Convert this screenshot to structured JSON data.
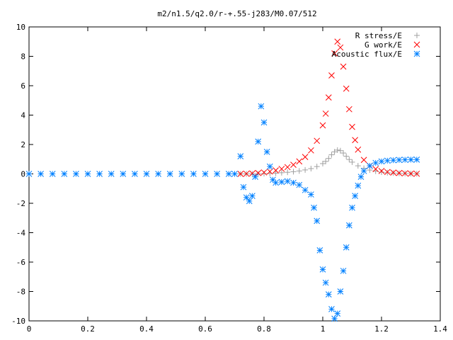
{
  "chart_data": {
    "type": "scatter",
    "title": "m2/n1.5/q2.0/r-+.55-j283/M0.07/512",
    "xlabel": "",
    "ylabel": "",
    "xlim": [
      0,
      1.4
    ],
    "ylim": [
      -10,
      10
    ],
    "xticks": [
      "0",
      "0.2",
      "0.4",
      "0.6",
      "0.8",
      "1",
      "1.2",
      "1.4"
    ],
    "yticks": [
      "-10",
      "-8",
      "-6",
      "-4",
      "-2",
      "0",
      "2",
      "4",
      "6",
      "8",
      "10"
    ],
    "grid": false,
    "legend_position": "top-right",
    "series": [
      {
        "name": "R stress/E",
        "marker": "plus",
        "color": "#a0a0a0",
        "points": [
          [
            0.72,
            0
          ],
          [
            0.74,
            0
          ],
          [
            0.76,
            0
          ],
          [
            0.78,
            0.01
          ],
          [
            0.8,
            0.02
          ],
          [
            0.82,
            0.03
          ],
          [
            0.84,
            0.05
          ],
          [
            0.86,
            0.08
          ],
          [
            0.88,
            0.11
          ],
          [
            0.9,
            0.15
          ],
          [
            0.92,
            0.2
          ],
          [
            0.94,
            0.27
          ],
          [
            0.96,
            0.36
          ],
          [
            0.98,
            0.5
          ],
          [
            1.0,
            0.7
          ],
          [
            1.01,
            0.85
          ],
          [
            1.02,
            1.05
          ],
          [
            1.03,
            1.3
          ],
          [
            1.04,
            1.5
          ],
          [
            1.05,
            1.62
          ],
          [
            1.06,
            1.58
          ],
          [
            1.07,
            1.42
          ],
          [
            1.08,
            1.2
          ],
          [
            1.09,
            0.98
          ],
          [
            1.1,
            0.8
          ],
          [
            1.12,
            0.55
          ],
          [
            1.14,
            0.38
          ],
          [
            1.16,
            0.26
          ],
          [
            1.18,
            0.18
          ],
          [
            1.2,
            0.12
          ],
          [
            1.22,
            0.08
          ],
          [
            1.24,
            0.06
          ],
          [
            1.26,
            0.04
          ],
          [
            1.28,
            0.03
          ],
          [
            1.3,
            0.02
          ],
          [
            1.32,
            0.01
          ]
        ]
      },
      {
        "name": "G work/E",
        "marker": "cross",
        "color": "#ff0000",
        "points": [
          [
            0.72,
            0
          ],
          [
            0.74,
            0.01
          ],
          [
            0.76,
            0.03
          ],
          [
            0.78,
            0.06
          ],
          [
            0.8,
            0.1
          ],
          [
            0.82,
            0.16
          ],
          [
            0.84,
            0.24
          ],
          [
            0.86,
            0.34
          ],
          [
            0.88,
            0.46
          ],
          [
            0.9,
            0.62
          ],
          [
            0.92,
            0.85
          ],
          [
            0.94,
            1.15
          ],
          [
            0.96,
            1.6
          ],
          [
            0.98,
            2.25
          ],
          [
            1.0,
            3.3
          ],
          [
            1.01,
            4.1
          ],
          [
            1.02,
            5.2
          ],
          [
            1.03,
            6.7
          ],
          [
            1.04,
            8.2
          ],
          [
            1.05,
            9.0
          ],
          [
            1.06,
            8.6
          ],
          [
            1.07,
            7.3
          ],
          [
            1.08,
            5.8
          ],
          [
            1.09,
            4.4
          ],
          [
            1.1,
            3.2
          ],
          [
            1.11,
            2.3
          ],
          [
            1.12,
            1.65
          ],
          [
            1.14,
            0.95
          ],
          [
            1.16,
            0.55
          ],
          [
            1.18,
            0.33
          ],
          [
            1.2,
            0.2
          ],
          [
            1.22,
            0.13
          ],
          [
            1.24,
            0.09
          ],
          [
            1.26,
            0.06
          ],
          [
            1.28,
            0.04
          ],
          [
            1.3,
            0.02
          ],
          [
            1.32,
            0.01
          ]
        ]
      },
      {
        "name": "Acoustic flux/E",
        "marker": "star",
        "color": "#0080ff",
        "points": [
          [
            0.0,
            0
          ],
          [
            0.04,
            0
          ],
          [
            0.08,
            0
          ],
          [
            0.12,
            0
          ],
          [
            0.16,
            0
          ],
          [
            0.2,
            0
          ],
          [
            0.24,
            0
          ],
          [
            0.28,
            0
          ],
          [
            0.32,
            0
          ],
          [
            0.36,
            0
          ],
          [
            0.4,
            0
          ],
          [
            0.44,
            0
          ],
          [
            0.48,
            0
          ],
          [
            0.52,
            0
          ],
          [
            0.56,
            0
          ],
          [
            0.6,
            0
          ],
          [
            0.64,
            0
          ],
          [
            0.68,
            0
          ],
          [
            0.7,
            0
          ],
          [
            0.72,
            1.2
          ],
          [
            0.73,
            -0.9
          ],
          [
            0.74,
            -1.6
          ],
          [
            0.75,
            -1.85
          ],
          [
            0.76,
            -1.5
          ],
          [
            0.77,
            -0.2
          ],
          [
            0.78,
            2.2
          ],
          [
            0.79,
            4.6
          ],
          [
            0.8,
            3.5
          ],
          [
            0.81,
            1.5
          ],
          [
            0.82,
            0.5
          ],
          [
            0.83,
            -0.4
          ],
          [
            0.84,
            -0.6
          ],
          [
            0.86,
            -0.55
          ],
          [
            0.88,
            -0.5
          ],
          [
            0.9,
            -0.6
          ],
          [
            0.92,
            -0.75
          ],
          [
            0.94,
            -1.1
          ],
          [
            0.96,
            -1.4
          ],
          [
            0.97,
            -2.3
          ],
          [
            0.98,
            -3.2
          ],
          [
            0.99,
            -5.2
          ],
          [
            1.0,
            -6.5
          ],
          [
            1.01,
            -7.4
          ],
          [
            1.02,
            -8.2
          ],
          [
            1.03,
            -9.2
          ],
          [
            1.04,
            -9.85
          ],
          [
            1.05,
            -9.5
          ],
          [
            1.06,
            -8.0
          ],
          [
            1.07,
            -6.6
          ],
          [
            1.08,
            -5.0
          ],
          [
            1.09,
            -3.5
          ],
          [
            1.1,
            -2.3
          ],
          [
            1.11,
            -1.5
          ],
          [
            1.12,
            -0.8
          ],
          [
            1.13,
            -0.2
          ],
          [
            1.14,
            0.2
          ],
          [
            1.16,
            0.55
          ],
          [
            1.18,
            0.75
          ],
          [
            1.2,
            0.85
          ],
          [
            1.22,
            0.9
          ],
          [
            1.24,
            0.93
          ],
          [
            1.26,
            0.95
          ],
          [
            1.28,
            0.96
          ],
          [
            1.3,
            0.97
          ],
          [
            1.32,
            0.97
          ]
        ]
      }
    ]
  }
}
